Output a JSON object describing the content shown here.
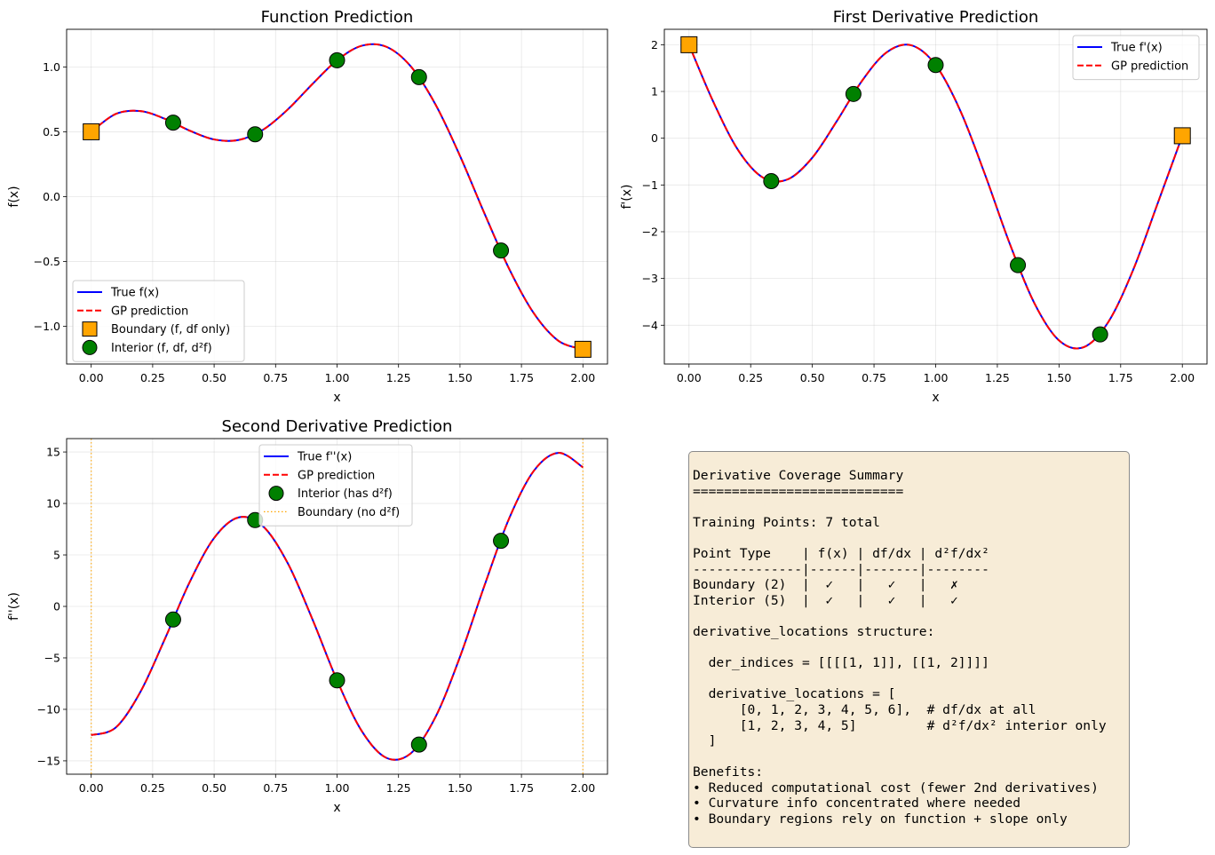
{
  "chart_data": [
    {
      "type": "line",
      "title": "Function Prediction",
      "xlabel": "x",
      "ylabel": "f(x)",
      "xlim": [
        -0.1,
        2.1
      ],
      "ylim": [
        -1.29,
        1.29
      ],
      "xticks": [
        "0.00",
        "0.25",
        "0.50",
        "0.75",
        "1.00",
        "1.25",
        "1.50",
        "1.75",
        "2.00"
      ],
      "yticks": [
        "-1.0",
        "-0.5",
        "0.0",
        "0.5",
        "1.0"
      ],
      "grid": true,
      "legend": "lower-left",
      "legend_entries": [
        "True f(x)",
        "GP prediction",
        "Boundary (f, df only)",
        "Interior (f, df, d²f)"
      ],
      "x": [
        0,
        0.1,
        0.2,
        0.3,
        0.4,
        0.5,
        0.6,
        0.7,
        0.8,
        0.9,
        1.0,
        1.1,
        1.2,
        1.3,
        1.4,
        1.5,
        1.6,
        1.7,
        1.8,
        1.9,
        2.0
      ],
      "series": [
        {
          "name": "True f(x)",
          "color": "#0000ff",
          "style": "solid",
          "values": [
            0.5,
            0.6375,
            0.6596,
            0.6,
            0.5093,
            0.4409,
            0.437,
            0.5172,
            0.6728,
            0.8684,
            1.0511,
            1.1629,
            1.1556,
            1.0038,
            0.712,
            0.3144,
            -0.1312,
            -0.5565,
            -0.8981,
            -1.1105,
            -1.1764
          ]
        },
        {
          "name": "GP prediction",
          "color": "#ff0000",
          "style": "dashed",
          "values": [
            0.5,
            0.6375,
            0.6596,
            0.6,
            0.5093,
            0.4409,
            0.437,
            0.5172,
            0.6728,
            0.8684,
            1.0511,
            1.1629,
            1.1556,
            1.0038,
            0.712,
            0.3144,
            -0.1312,
            -0.5565,
            -0.8981,
            -1.1105,
            -1.1764
          ]
        }
      ],
      "points": [
        {
          "name": "Boundary (f, df only)",
          "marker": "square",
          "color": "#ffa500",
          "x": [
            0,
            2
          ],
          "y": [
            0.5,
            -1.1764
          ]
        },
        {
          "name": "Interior (f, df, d²f)",
          "marker": "circle",
          "color": "#008000",
          "x": [
            0.3333,
            0.6667,
            1.0,
            1.3333,
            1.6667
          ],
          "y": [
            0.5705,
            0.4811,
            1.0511,
            0.9212,
            -0.4151
          ]
        }
      ]
    },
    {
      "type": "line",
      "title": "First Derivative Prediction",
      "xlabel": "x",
      "ylabel": "f'(x)",
      "xlim": [
        -0.1,
        2.1
      ],
      "ylim": [
        -4.83,
        2.33
      ],
      "xticks": [
        "0.00",
        "0.25",
        "0.50",
        "0.75",
        "1.00",
        "1.25",
        "1.50",
        "1.75",
        "2.00"
      ],
      "yticks": [
        "-4",
        "-3",
        "-2",
        "-1",
        "0",
        "1",
        "2"
      ],
      "grid": true,
      "legend": "upper-right",
      "legend_entries": [
        "True f'(x)",
        "GP prediction"
      ],
      "x": [
        0,
        0.1,
        0.2,
        0.3,
        0.4,
        0.5,
        0.6,
        0.7,
        0.8,
        0.9,
        1.0,
        1.1,
        1.2,
        1.3,
        1.4,
        1.5,
        1.6,
        1.7,
        1.8,
        1.9,
        2.0
      ],
      "series": [
        {
          "name": "True f'(x)",
          "color": "#0000ff",
          "style": "solid",
          "values": [
            2.0,
            0.7617,
            -0.2616,
            -0.843,
            -0.8798,
            -0.4156,
            0.3719,
            1.217,
            1.8336,
            1.9894,
            1.565,
            0.5868,
            -0.7763,
            -2.2516,
            -3.527,
            -4.325,
            -4.47,
            -3.93,
            -2.824,
            -1.394,
            0.0527
          ]
        },
        {
          "name": "GP prediction",
          "color": "#ff0000",
          "style": "dashed",
          "values": [
            2.0,
            0.7617,
            -0.2616,
            -0.843,
            -0.8798,
            -0.4156,
            0.3719,
            1.217,
            1.8336,
            1.9894,
            1.565,
            0.5868,
            -0.7763,
            -2.2516,
            -3.527,
            -4.325,
            -4.47,
            -3.93,
            -2.824,
            -1.394,
            0.0527
          ]
        }
      ],
      "points": [
        {
          "marker": "square",
          "color": "#ffa500",
          "x": [
            0,
            2
          ],
          "y": [
            2.0,
            0.0527
          ]
        },
        {
          "marker": "circle",
          "color": "#008000",
          "x": [
            0.3333,
            0.6667,
            1.0,
            1.3333,
            1.6667
          ],
          "y": [
            -0.917,
            0.947,
            1.565,
            -2.714,
            -4.197
          ]
        }
      ]
    },
    {
      "type": "line",
      "title": "Second Derivative Prediction",
      "xlabel": "x",
      "ylabel": "f''(x)",
      "xlim": [
        -0.1,
        2.1
      ],
      "ylim": [
        -16.3,
        16.3
      ],
      "xticks": [
        "0.00",
        "0.25",
        "0.50",
        "0.75",
        "1.00",
        "1.25",
        "1.50",
        "1.75",
        "2.00"
      ],
      "yticks": [
        "-15",
        "-10",
        "-5",
        "0",
        "5",
        "10",
        "15"
      ],
      "grid": true,
      "legend": "upper-center",
      "legend_entries": [
        "True f''(x)",
        "GP prediction",
        "Interior (has d²f)",
        "Boundary (no d²f)"
      ],
      "x": [
        0,
        0.1,
        0.2,
        0.3,
        0.4,
        0.5,
        0.6,
        0.7,
        0.8,
        0.9,
        1.0,
        1.1,
        1.2,
        1.3,
        1.4,
        1.5,
        1.6,
        1.7,
        1.8,
        1.9,
        2.0
      ],
      "series": [
        {
          "name": "True f''(x)",
          "color": "#0000ff",
          "style": "solid",
          "values": [
            -12.5,
            -11.765,
            -8.311,
            -3.142,
            2.332,
            6.648,
            8.647,
            7.764,
            4.172,
            -1.26,
            -7.183,
            -12.093,
            -14.704,
            -14.27,
            -10.764,
            -4.897,
            2.052,
            8.547,
            13.159,
            14.913,
            13.516
          ]
        },
        {
          "name": "GP prediction",
          "color": "#ff0000",
          "style": "dashed",
          "values": [
            -12.5,
            -11.765,
            -8.311,
            -3.142,
            2.332,
            6.648,
            8.647,
            7.764,
            4.172,
            -1.26,
            -7.183,
            -12.093,
            -14.704,
            -14.27,
            -10.764,
            -4.897,
            2.052,
            8.547,
            13.159,
            14.913,
            13.516
          ]
        }
      ],
      "points": [
        {
          "name": "Interior (has d²f)",
          "marker": "circle",
          "color": "#008000",
          "x": [
            0.3333,
            0.6667,
            1.0,
            1.3333,
            1.6667
          ],
          "y": [
            -1.277,
            8.383,
            -7.183,
            -13.423,
            6.375
          ]
        }
      ],
      "vlines": {
        "name": "Boundary (no d²f)",
        "color": "#ffa500",
        "style": "dotted",
        "x": [
          0,
          2
        ]
      }
    }
  ],
  "summary": {
    "lines": [
      "Derivative Coverage Summary",
      "===========================",
      "",
      "Training Points: 7 total",
      "",
      "Point Type    | f(x) | df/dx | d²f/dx²",
      "--------------|------|-------|--------",
      "Boundary (2)  |  ✓   |   ✓   |   ✗",
      "Interior (5)  |  ✓   |   ✓   |   ✓",
      "",
      "derivative_locations structure:",
      "",
      "  der_indices = [[[[1, 1]], [[1, 2]]]]",
      "",
      "  derivative_locations = [",
      "      [0, 1, 2, 3, 4, 5, 6],  # df/dx at all",
      "      [1, 2, 3, 4, 5]         # d²f/dx² interior only",
      "  ]",
      "",
      "Benefits:",
      "• Reduced computational cost (fewer 2nd derivatives)",
      "• Curvature info concentrated where needed",
      "• Boundary regions rely on function + slope only"
    ]
  }
}
